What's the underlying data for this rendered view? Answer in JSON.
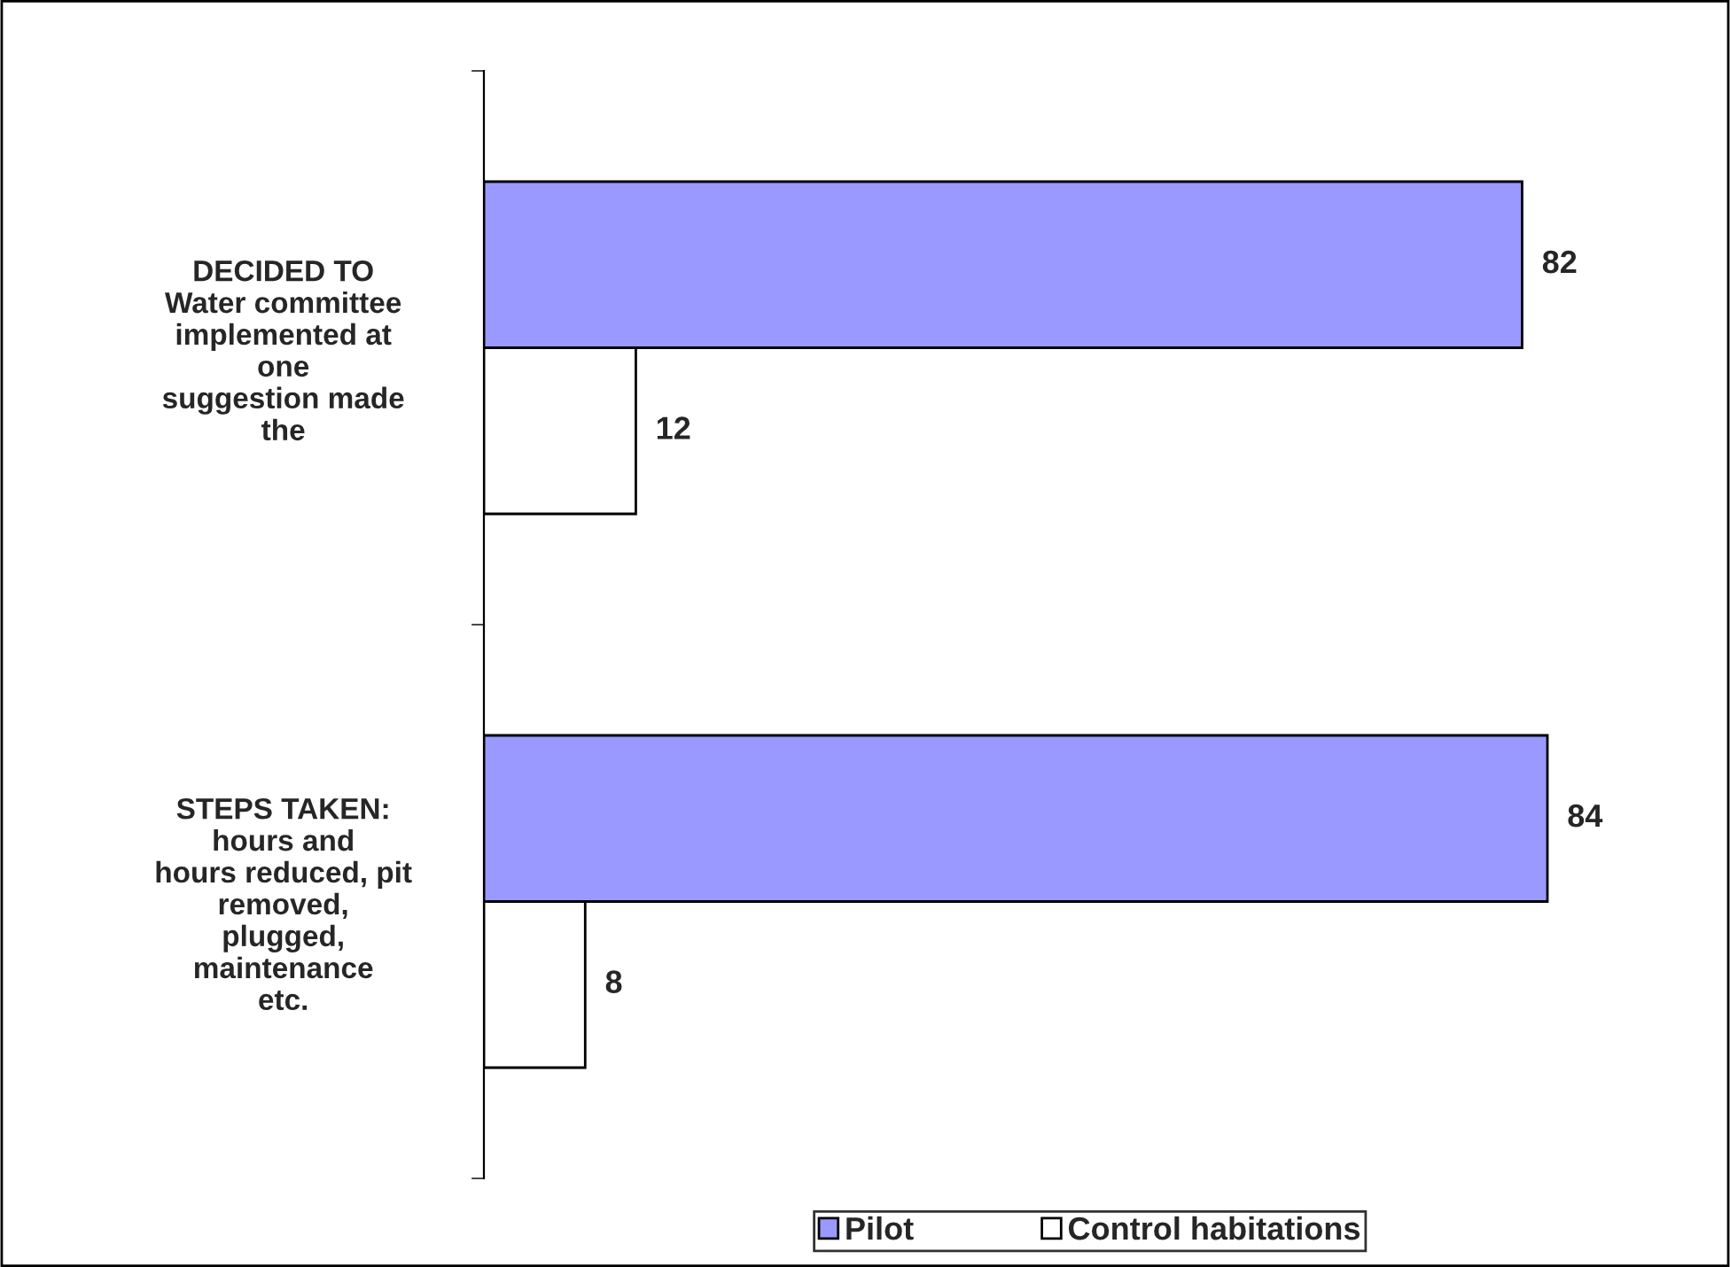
{
  "chart_data": {
    "type": "bar",
    "orientation": "horizontal",
    "categories": [
      "DECIDED TO\nWater committee\nimplemented at\none\nsuggestion made\nthe",
      "STEPS TAKEN:\nhours and\nhours reduced, pit\nremoved,\nplugged,\nmaintenance\netc."
    ],
    "series": [
      {
        "name": "Pilot",
        "color": "#9999ff",
        "values": [
          82,
          84
        ]
      },
      {
        "name": "Control habitations",
        "color": "#ffffff",
        "values": [
          12,
          8
        ]
      }
    ],
    "data_labels": true,
    "legend": "bottom",
    "grid": false
  }
}
